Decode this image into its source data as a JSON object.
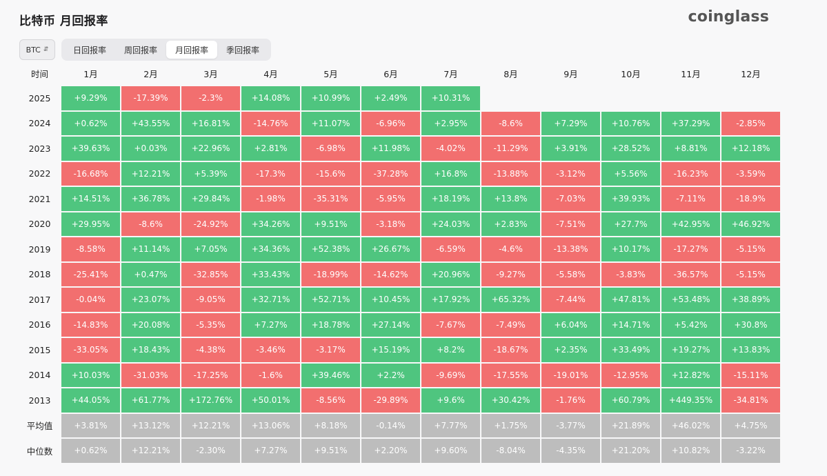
{
  "page": {
    "title": "比特币 月回报率",
    "logo": "coinglass"
  },
  "controls": {
    "asset": "BTC",
    "tabs": [
      {
        "label": "日回报率",
        "active": false
      },
      {
        "label": "周回报率",
        "active": false
      },
      {
        "label": "月回报率",
        "active": true
      },
      {
        "label": "季回报率",
        "active": false
      }
    ]
  },
  "colors": {
    "positive": "#4fc57f",
    "negative": "#f26f6f",
    "summary": "#bdbdbd"
  },
  "chart_data": {
    "type": "heatmap",
    "corner_label": "时间",
    "columns": [
      "1月",
      "2月",
      "3月",
      "4月",
      "5月",
      "6月",
      "7月",
      "8月",
      "9月",
      "10月",
      "11月",
      "12月"
    ],
    "rows": [
      {
        "label": "2025",
        "kind": "year",
        "values": [
          "+9.29%",
          "-17.39%",
          "-2.3%",
          "+14.08%",
          "+10.99%",
          "+2.49%",
          "+10.31%",
          null,
          null,
          null,
          null,
          null
        ]
      },
      {
        "label": "2024",
        "kind": "year",
        "values": [
          "+0.62%",
          "+43.55%",
          "+16.81%",
          "-14.76%",
          "+11.07%",
          "-6.96%",
          "+2.95%",
          "-8.6%",
          "+7.29%",
          "+10.76%",
          "+37.29%",
          "-2.85%"
        ]
      },
      {
        "label": "2023",
        "kind": "year",
        "values": [
          "+39.63%",
          "+0.03%",
          "+22.96%",
          "+2.81%",
          "-6.98%",
          "+11.98%",
          "-4.02%",
          "-11.29%",
          "+3.91%",
          "+28.52%",
          "+8.81%",
          "+12.18%"
        ]
      },
      {
        "label": "2022",
        "kind": "year",
        "values": [
          "-16.68%",
          "+12.21%",
          "+5.39%",
          "-17.3%",
          "-15.6%",
          "-37.28%",
          "+16.8%",
          "-13.88%",
          "-3.12%",
          "+5.56%",
          "-16.23%",
          "-3.59%"
        ]
      },
      {
        "label": "2021",
        "kind": "year",
        "values": [
          "+14.51%",
          "+36.78%",
          "+29.84%",
          "-1.98%",
          "-35.31%",
          "-5.95%",
          "+18.19%",
          "+13.8%",
          "-7.03%",
          "+39.93%",
          "-7.11%",
          "-18.9%"
        ]
      },
      {
        "label": "2020",
        "kind": "year",
        "values": [
          "+29.95%",
          "-8.6%",
          "-24.92%",
          "+34.26%",
          "+9.51%",
          "-3.18%",
          "+24.03%",
          "+2.83%",
          "-7.51%",
          "+27.7%",
          "+42.95%",
          "+46.92%"
        ]
      },
      {
        "label": "2019",
        "kind": "year",
        "values": [
          "-8.58%",
          "+11.14%",
          "+7.05%",
          "+34.36%",
          "+52.38%",
          "+26.67%",
          "-6.59%",
          "-4.6%",
          "-13.38%",
          "+10.17%",
          "-17.27%",
          "-5.15%"
        ]
      },
      {
        "label": "2018",
        "kind": "year",
        "values": [
          "-25.41%",
          "+0.47%",
          "-32.85%",
          "+33.43%",
          "-18.99%",
          "-14.62%",
          "+20.96%",
          "-9.27%",
          "-5.58%",
          "-3.83%",
          "-36.57%",
          "-5.15%"
        ]
      },
      {
        "label": "2017",
        "kind": "year",
        "values": [
          "-0.04%",
          "+23.07%",
          "-9.05%",
          "+32.71%",
          "+52.71%",
          "+10.45%",
          "+17.92%",
          "+65.32%",
          "-7.44%",
          "+47.81%",
          "+53.48%",
          "+38.89%"
        ]
      },
      {
        "label": "2016",
        "kind": "year",
        "values": [
          "-14.83%",
          "+20.08%",
          "-5.35%",
          "+7.27%",
          "+18.78%",
          "+27.14%",
          "-7.67%",
          "-7.49%",
          "+6.04%",
          "+14.71%",
          "+5.42%",
          "+30.8%"
        ]
      },
      {
        "label": "2015",
        "kind": "year",
        "values": [
          "-33.05%",
          "+18.43%",
          "-4.38%",
          "-3.46%",
          "-3.17%",
          "+15.19%",
          "+8.2%",
          "-18.67%",
          "+2.35%",
          "+33.49%",
          "+19.27%",
          "+13.83%"
        ]
      },
      {
        "label": "2014",
        "kind": "year",
        "values": [
          "+10.03%",
          "-31.03%",
          "-17.25%",
          "-1.6%",
          "+39.46%",
          "+2.2%",
          "-9.69%",
          "-17.55%",
          "-19.01%",
          "-12.95%",
          "+12.82%",
          "-15.11%"
        ]
      },
      {
        "label": "2013",
        "kind": "year",
        "values": [
          "+44.05%",
          "+61.77%",
          "+172.76%",
          "+50.01%",
          "-8.56%",
          "-29.89%",
          "+9.6%",
          "+30.42%",
          "-1.76%",
          "+60.79%",
          "+449.35%",
          "-34.81%"
        ]
      },
      {
        "label": "平均值",
        "kind": "summary",
        "values": [
          "+3.81%",
          "+13.12%",
          "+12.21%",
          "+13.06%",
          "+8.18%",
          "-0.14%",
          "+7.77%",
          "+1.75%",
          "-3.77%",
          "+21.89%",
          "+46.02%",
          "+4.75%"
        ]
      },
      {
        "label": "中位数",
        "kind": "summary",
        "values": [
          "+0.62%",
          "+12.21%",
          "-2.30%",
          "+7.27%",
          "+9.51%",
          "+2.20%",
          "+9.60%",
          "-8.04%",
          "-4.35%",
          "+21.20%",
          "+10.82%",
          "-3.22%"
        ]
      }
    ]
  }
}
